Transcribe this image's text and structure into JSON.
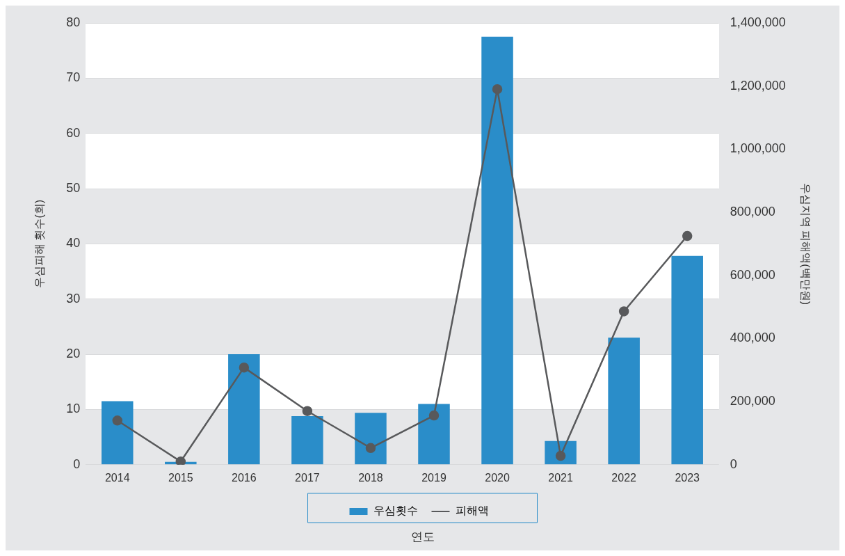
{
  "chart_data": {
    "type": "bar",
    "categories": [
      "2014",
      "2015",
      "2016",
      "2017",
      "2018",
      "2019",
      "2020",
      "2021",
      "2022",
      "2023"
    ],
    "series": [
      {
        "name": "우심횟수",
        "color": "#2a8dc9",
        "values": [
          11.5,
          0.5,
          20,
          8.8,
          9.4,
          11,
          77.5,
          4.3,
          23,
          37.8
        ]
      },
      {
        "name": "피해액",
        "type": "line",
        "axis": "y2",
        "color": "#58595b",
        "marker": "circle",
        "values": [
          140000,
          10000,
          308000,
          170000,
          53000,
          156000,
          1190000,
          28000,
          486000,
          725000
        ]
      }
    ],
    "xlabel": "연도",
    "ylabel": "우심피해 횟수(회)",
    "y2label": "우심지역 피해액(백만원)",
    "ylim": [
      0,
      80
    ],
    "yticks": [
      0,
      10,
      20,
      30,
      40,
      50,
      60,
      70,
      80
    ],
    "y2lim": [
      0,
      1400000
    ],
    "y2ticks": [
      {
        "value": 0,
        "label": "0"
      },
      {
        "value": 200000,
        "label": "200,000"
      },
      {
        "value": 400000,
        "label": "400,000"
      },
      {
        "value": 600000,
        "label": "600,000"
      },
      {
        "value": 800000,
        "label": "800,000"
      },
      {
        "value": 1000000,
        "label": "1,000,000"
      },
      {
        "value": 1200000,
        "label": "1,200,000"
      },
      {
        "value": 1400000,
        "label": "1,400,000"
      }
    ],
    "grid": "y",
    "legend": "bottom"
  }
}
